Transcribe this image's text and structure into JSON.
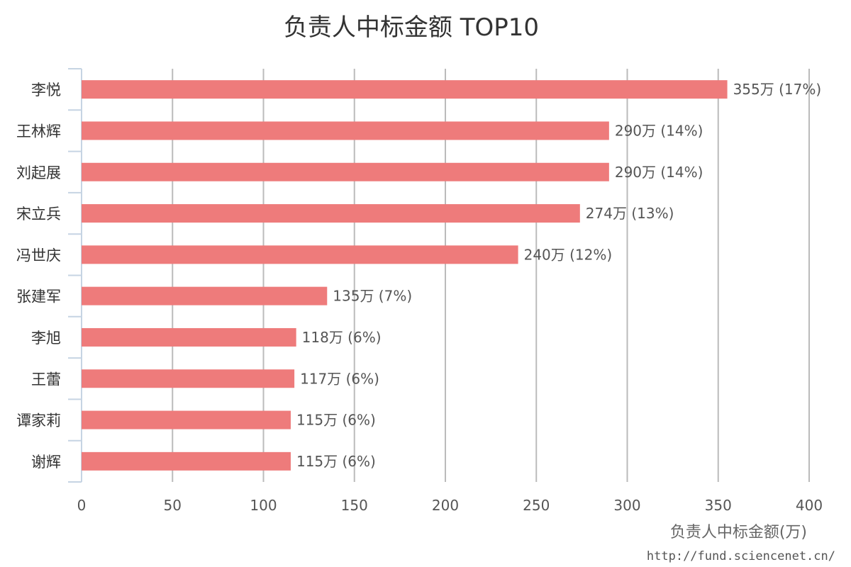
{
  "chart_data": {
    "type": "bar",
    "orientation": "horizontal",
    "title": "负责人中标金额 TOP10",
    "xlabel": "负责人中标金额(万)",
    "ylabel": "",
    "categories": [
      "李悦",
      "王林辉",
      "刘起展",
      "宋立兵",
      "冯世庆",
      "张建军",
      "李旭",
      "王蕾",
      "谭家莉",
      "谢辉"
    ],
    "values": [
      355,
      290,
      290,
      274,
      240,
      135,
      118,
      117,
      115,
      115
    ],
    "data_labels": [
      "355万 (17%)",
      "290万 (14%)",
      "290万 (14%)",
      "274万 (13%)",
      "240万 (12%)",
      "135万 (7%)",
      "118万 (6%)",
      "117万 (6%)",
      "115万 (6%)",
      "115万 (6%)"
    ],
    "xlim": [
      0,
      400
    ],
    "x_ticks": [
      "0",
      "50",
      "100",
      "150",
      "200",
      "250",
      "300",
      "350",
      "400"
    ],
    "grid": true,
    "bar_color": "#ee7b7b"
  },
  "source_text": "http://fund.sciencenet.cn/"
}
